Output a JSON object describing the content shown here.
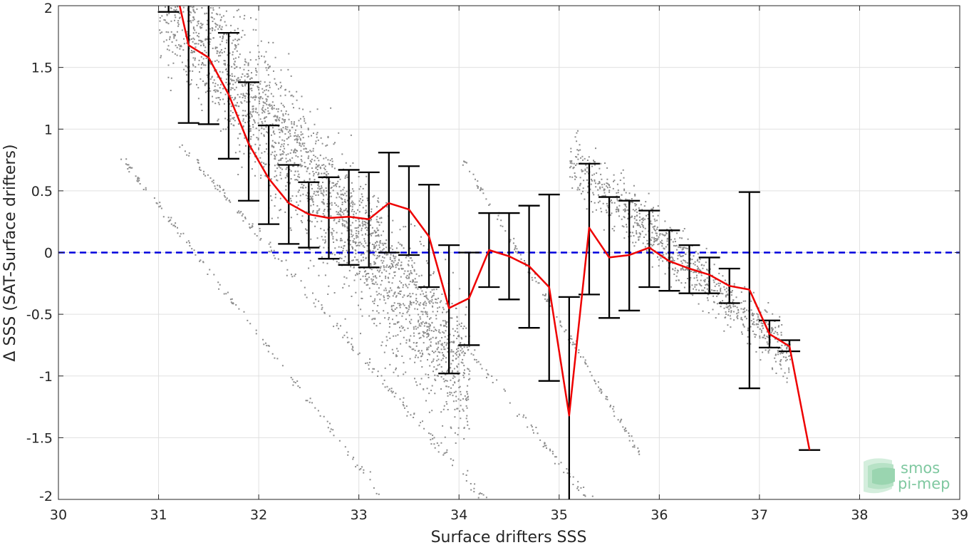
{
  "chart_data": {
    "type": "scatter",
    "xlabel": "Surface drifters SSS",
    "ylabel": "Δ SSS (SAT-Surface drifters)",
    "xlim": [
      30,
      39
    ],
    "ylim": [
      -2,
      2
    ],
    "x_ticks": [
      "30",
      "31",
      "32",
      "33",
      "34",
      "35",
      "36",
      "37",
      "38",
      "39"
    ],
    "y_ticks": [
      "-2",
      "-1.5",
      "-1",
      "-0.5",
      "0",
      "0.5",
      "1",
      "1.5",
      "2"
    ],
    "grid": true,
    "reference_line": {
      "y": 0,
      "style": "dashed",
      "color": "#0000dd"
    },
    "scatter_color": "#8c8c8c",
    "mean_line_color": "#ee0000",
    "errorbar_color": "#000000",
    "binned_stats": [
      {
        "x": 31.1,
        "mean": 2.4,
        "low": 1.95,
        "high": 2.6
      },
      {
        "x": 31.3,
        "mean": 1.68,
        "low": 1.05,
        "high": 2.3
      },
      {
        "x": 31.5,
        "mean": 1.58,
        "low": 1.04,
        "high": 2.15
      },
      {
        "x": 31.7,
        "mean": 1.28,
        "low": 0.76,
        "high": 1.78
      },
      {
        "x": 31.9,
        "mean": 0.88,
        "low": 0.42,
        "high": 1.38
      },
      {
        "x": 32.1,
        "mean": 0.6,
        "low": 0.23,
        "high": 1.03
      },
      {
        "x": 32.3,
        "mean": 0.4,
        "low": 0.07,
        "high": 0.71
      },
      {
        "x": 32.5,
        "mean": 0.31,
        "low": 0.04,
        "high": 0.57
      },
      {
        "x": 32.7,
        "mean": 0.28,
        "low": -0.05,
        "high": 0.61
      },
      {
        "x": 32.9,
        "mean": 0.29,
        "low": -0.1,
        "high": 0.67
      },
      {
        "x": 33.1,
        "mean": 0.27,
        "low": -0.12,
        "high": 0.65
      },
      {
        "x": 33.3,
        "mean": 0.4,
        "low": 0.0,
        "high": 0.81
      },
      {
        "x": 33.5,
        "mean": 0.35,
        "low": -0.02,
        "high": 0.7
      },
      {
        "x": 33.7,
        "mean": 0.13,
        "low": -0.28,
        "high": 0.55
      },
      {
        "x": 33.9,
        "mean": -0.45,
        "low": -0.98,
        "high": 0.06
      },
      {
        "x": 34.1,
        "mean": -0.37,
        "low": -0.75,
        "high": 0.0
      },
      {
        "x": 34.3,
        "mean": 0.02,
        "low": -0.28,
        "high": 0.32
      },
      {
        "x": 34.5,
        "mean": -0.03,
        "low": -0.38,
        "high": 0.32
      },
      {
        "x": 34.7,
        "mean": -0.11,
        "low": -0.61,
        "high": 0.38
      },
      {
        "x": 34.9,
        "mean": -0.28,
        "low": -1.04,
        "high": 0.47
      },
      {
        "x": 35.1,
        "mean": -1.32,
        "low": -2.3,
        "high": -0.36
      },
      {
        "x": 35.3,
        "mean": 0.2,
        "low": -0.34,
        "high": 0.72
      },
      {
        "x": 35.5,
        "mean": -0.04,
        "low": -0.53,
        "high": 0.45
      },
      {
        "x": 35.7,
        "mean": -0.02,
        "low": -0.47,
        "high": 0.42
      },
      {
        "x": 35.9,
        "mean": 0.04,
        "low": -0.28,
        "high": 0.34
      },
      {
        "x": 36.1,
        "mean": -0.07,
        "low": -0.31,
        "high": 0.18
      },
      {
        "x": 36.3,
        "mean": -0.13,
        "low": -0.33,
        "high": 0.06
      },
      {
        "x": 36.5,
        "mean": -0.18,
        "low": -0.33,
        "high": -0.04
      },
      {
        "x": 36.7,
        "mean": -0.27,
        "low": -0.41,
        "high": -0.13
      },
      {
        "x": 36.9,
        "mean": -0.3,
        "low": -1.1,
        "high": 0.49
      },
      {
        "x": 37.1,
        "mean": -0.66,
        "low": -0.77,
        "high": -0.55
      },
      {
        "x": 37.3,
        "mean": -0.76,
        "low": -0.8,
        "high": -0.71
      },
      {
        "x": 37.5,
        "mean": -1.6,
        "low": -1.6,
        "high": -1.6
      }
    ],
    "scatter_clouds": [
      {
        "name": "main",
        "x_range": [
          31.0,
          34.1
        ],
        "y_intercept_at_x_min": 2.2,
        "slope": -1.05,
        "spread": 0.55,
        "density": 2600
      },
      {
        "name": "east",
        "x_range": [
          35.1,
          37.3
        ],
        "y_intercept_at_x_min": 0.75,
        "slope": -0.72,
        "spread": 0.22,
        "density": 900
      },
      {
        "name": "tail-1",
        "x_range": [
          32.0,
          36.0
        ],
        "y_intercept_at_x_min": 1.3,
        "slope": -1.0,
        "spread": 0.05,
        "density": 260
      },
      {
        "name": "tail-2",
        "x_range": [
          31.2,
          34.8
        ],
        "y_intercept_at_x_min": 0.9,
        "slope": -0.95,
        "spread": 0.05,
        "density": 220
      },
      {
        "name": "tail-3",
        "x_range": [
          30.6,
          33.5
        ],
        "y_intercept_at_x_min": 0.8,
        "slope": -1.05,
        "spread": 0.04,
        "density": 140
      },
      {
        "name": "tail-4",
        "x_range": [
          34.0,
          35.8
        ],
        "y_intercept_at_x_min": 0.8,
        "slope": -1.35,
        "spread": 0.04,
        "density": 140
      }
    ],
    "seed": 7
  },
  "logo": {
    "line1": "smos",
    "line2": "pi-mep"
  }
}
